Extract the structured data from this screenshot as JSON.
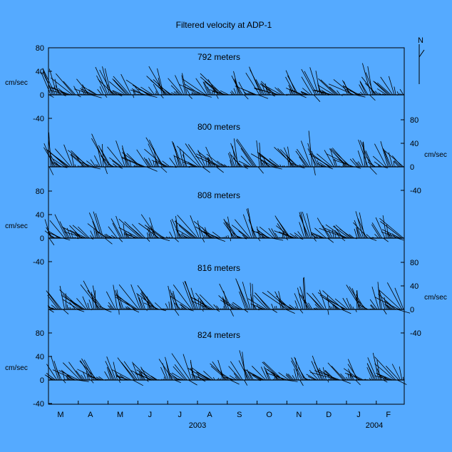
{
  "chart_data": {
    "type": "stick-vector-timeseries",
    "title": "Filtered velocity at ADP-1",
    "unit_label": "cm/sec",
    "north_label": "N",
    "months": [
      "M",
      "A",
      "M",
      "J",
      "J",
      "A",
      "S",
      "O",
      "N",
      "D",
      "J",
      "F"
    ],
    "years": [
      {
        "label": "2003",
        "month_index": 5
      },
      {
        "label": "2004",
        "month_index": 10.5
      }
    ],
    "ylim": [
      -40,
      80
    ],
    "panels": [
      {
        "depth": "792 meters",
        "axis_side": "left",
        "ticks": [
          "80",
          "40",
          "0",
          "-40"
        ],
        "dir": 136,
        "base_speed": 42,
        "amp": 14,
        "phase": 0.0
      },
      {
        "depth": "800 meters",
        "axis_side": "right",
        "ticks": [
          "80",
          "40",
          "0",
          "-40"
        ],
        "dir": 142,
        "base_speed": 46,
        "amp": 15,
        "phase": 1.1
      },
      {
        "depth": "808 meters",
        "axis_side": "left",
        "ticks": [
          "80",
          "40",
          "0",
          "-40"
        ],
        "dir": 140,
        "base_speed": 40,
        "amp": 14,
        "phase": 2.3
      },
      {
        "depth": "816 meters",
        "axis_side": "right",
        "ticks": [
          "80",
          "40",
          "0",
          "-40"
        ],
        "dir": 145,
        "base_speed": 44,
        "amp": 15,
        "phase": 3.4
      },
      {
        "depth": "824 meters",
        "axis_side": "left",
        "ticks": [
          "80",
          "40",
          "0",
          "-40"
        ],
        "dir": 138,
        "base_speed": 40,
        "amp": 14,
        "phase": 4.6
      }
    ]
  }
}
